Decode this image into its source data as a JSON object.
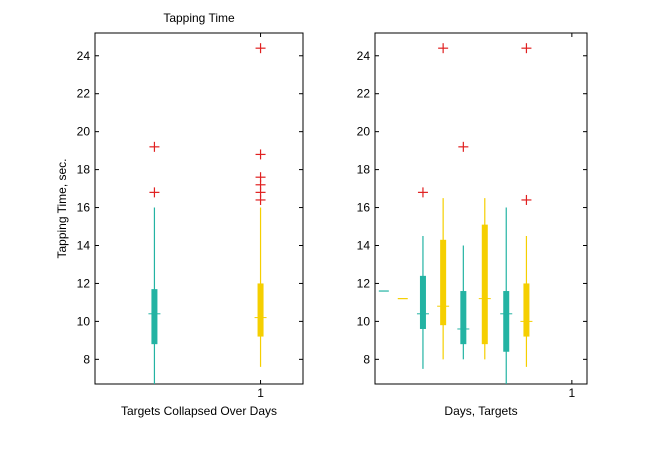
{
  "colors": {
    "teal": "#23b3a3",
    "gold": "#f5cf00",
    "outlier": "#e02020",
    "axis": "#000000"
  },
  "chart_data": [
    {
      "type": "box",
      "title": "Tapping Time",
      "xlabel": "Targets Collapsed Over Days",
      "ylabel": "Tapping Time, sec.",
      "ylim": [
        6.7,
        25.2
      ],
      "xlim": [
        0.22,
        1.2
      ],
      "yticks": [
        "8",
        "10",
        "12",
        "14",
        "16",
        "18",
        "20",
        "22",
        "24"
      ],
      "xticks": [
        "1"
      ],
      "boxes": [
        {
          "x": 0.5,
          "color": "teal",
          "whisker_low": 6.7,
          "q1": 8.8,
          "median": 10.4,
          "q3": 11.7,
          "whisker_high": 16.0,
          "outliers": [
            16.8,
            19.2
          ]
        },
        {
          "x": 1.0,
          "color": "gold",
          "whisker_low": 7.6,
          "q1": 9.2,
          "median": 10.2,
          "q3": 12.0,
          "whisker_high": 16.0,
          "outliers": [
            16.4,
            16.8,
            17.2,
            17.6,
            18.8,
            24.4
          ]
        }
      ]
    },
    {
      "type": "box",
      "title": "",
      "xlabel": "Days, Targets",
      "ylabel": "",
      "ylim": [
        6.7,
        25.2
      ],
      "xlim": [
        0.22,
        1.06
      ],
      "yticks": [
        "8",
        "10",
        "12",
        "14",
        "16",
        "18",
        "20",
        "22",
        "24"
      ],
      "xticks": [
        "1"
      ],
      "boxes": [
        {
          "x": 0.255,
          "color": "teal",
          "whisker_low": 11.6,
          "q1": 11.6,
          "median": 11.6,
          "q3": 11.6,
          "whisker_high": 11.6,
          "outliers": []
        },
        {
          "x": 0.33,
          "color": "gold",
          "whisker_low": 11.2,
          "q1": 11.2,
          "median": 11.2,
          "q3": 11.2,
          "whisker_high": 11.2,
          "outliers": []
        },
        {
          "x": 0.41,
          "color": "teal",
          "whisker_low": 7.5,
          "q1": 9.6,
          "median": 10.4,
          "q3": 12.4,
          "whisker_high": 14.5,
          "outliers": [
            16.8
          ]
        },
        {
          "x": 0.49,
          "color": "gold",
          "whisker_low": 8.0,
          "q1": 9.8,
          "median": 10.8,
          "q3": 14.3,
          "whisker_high": 16.5,
          "outliers": [
            24.4
          ]
        },
        {
          "x": 0.57,
          "color": "teal",
          "whisker_low": 8.0,
          "q1": 8.8,
          "median": 9.6,
          "q3": 11.6,
          "whisker_high": 14.0,
          "outliers": [
            19.2
          ]
        },
        {
          "x": 0.655,
          "color": "gold",
          "whisker_low": 8.0,
          "q1": 8.8,
          "median": 11.2,
          "q3": 15.1,
          "whisker_high": 16.5,
          "outliers": []
        },
        {
          "x": 0.74,
          "color": "teal",
          "whisker_low": 6.7,
          "q1": 8.4,
          "median": 10.4,
          "q3": 11.6,
          "whisker_high": 16.0,
          "outliers": []
        },
        {
          "x": 0.82,
          "color": "gold",
          "whisker_low": 7.6,
          "q1": 9.2,
          "median": 10.0,
          "q3": 12.0,
          "whisker_high": 14.5,
          "outliers": [
            16.4,
            24.4
          ]
        }
      ]
    }
  ]
}
